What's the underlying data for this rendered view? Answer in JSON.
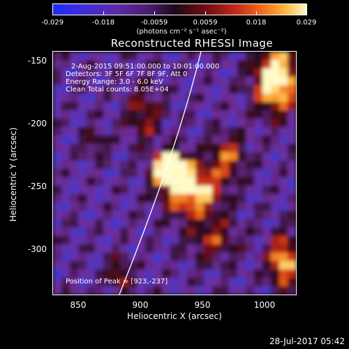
{
  "colorbar": {
    "ticks": [
      "-0.029",
      "-0.018",
      "-0.0059",
      "0.0059",
      "0.018",
      "0.029"
    ],
    "unit_label": "(photons cm⁻² s⁻¹ asec⁻²)"
  },
  "plot": {
    "title": "Reconstructed RHESSI Image",
    "info_lines": [
      "2-Aug-2015 09:51:00.000 to 10:01:00.000",
      "Detectors: 3F 5F 6F 7F 8F 9F, Att 0",
      "Energy Range: 3.0 - 6.0 keV",
      "Clean     Total counts: 8.05E+04"
    ],
    "peak_label": "Position of Peak = [923,-237]",
    "xlabel": "Heliocentric X (arcsec)",
    "ylabel": "Heliocentric Y (arcsec)",
    "xticks": [
      "850",
      "900",
      "950",
      "1000"
    ],
    "yticks": [
      "-150",
      "-200",
      "-250",
      "-300"
    ]
  },
  "footer": "28-Jul-2017 05:42"
}
